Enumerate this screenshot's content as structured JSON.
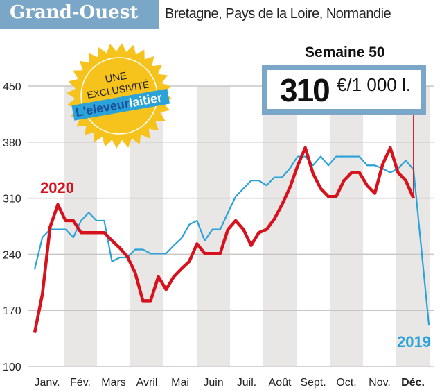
{
  "header": {
    "title": "Grand-Ouest",
    "subtitle": "Bretagne, Pays de la Loire, Normandie"
  },
  "callout": {
    "label": "Semaine 50",
    "value": "310",
    "unit": "€/1 000 l."
  },
  "badge": {
    "line1": "UNE",
    "line2": "EXCLUSIVITÉ",
    "logo_part1": "L'eleveur",
    "logo_part2": "laitier"
  },
  "colors": {
    "accent_box": "#7aa6c8",
    "series_2020": "#d6121d",
    "series_2019": "#2ba3d8",
    "band": "#e9e6e6",
    "badge": "#f6c21c"
  },
  "chart_data": {
    "type": "line",
    "xlabel": "",
    "ylabel": "",
    "ylim": [
      100,
      450
    ],
    "yticks": [
      100,
      170,
      240,
      310,
      380,
      450
    ],
    "x_unit": "week",
    "xlim": [
      1,
      52
    ],
    "month_labels": [
      "Janv.",
      "Fév.",
      "Mars",
      "Avril",
      "Mai",
      "Juin",
      "Juil.",
      "Août",
      "Sept.",
      "Oct.",
      "Nov.",
      "Déc."
    ],
    "grid": true,
    "series": [
      {
        "name": "2020",
        "weeks": [
          1,
          2,
          3,
          4,
          5,
          6,
          7,
          8,
          9,
          10,
          11,
          12,
          13,
          14,
          15,
          16,
          17,
          18,
          19,
          20,
          21,
          22,
          23,
          24,
          25,
          26,
          27,
          28,
          29,
          30,
          31,
          32,
          33,
          34,
          35,
          36,
          37,
          38,
          39,
          40,
          41,
          42,
          43,
          44,
          45,
          46,
          47,
          48,
          49,
          50
        ],
        "values": [
          142,
          190,
          274,
          302,
          282,
          282,
          267,
          267,
          267,
          267,
          257,
          248,
          237,
          217,
          182,
          182,
          212,
          196,
          212,
          222,
          231,
          253,
          241,
          241,
          241,
          271,
          282,
          271,
          251,
          267,
          271,
          284,
          302,
          323,
          350,
          373,
          341,
          322,
          312,
          312,
          332,
          342,
          342,
          326,
          316,
          352,
          373,
          342,
          332,
          310
        ]
      },
      {
        "name": "2019",
        "weeks": [
          1,
          2,
          3,
          4,
          5,
          6,
          7,
          8,
          9,
          10,
          11,
          12,
          13,
          14,
          15,
          16,
          17,
          18,
          19,
          20,
          21,
          22,
          23,
          24,
          25,
          26,
          27,
          28,
          29,
          30,
          31,
          32,
          33,
          34,
          35,
          36,
          37,
          38,
          39,
          40,
          41,
          42,
          43,
          44,
          45,
          46,
          47,
          48,
          49,
          50,
          52
        ],
        "values": [
          221,
          261,
          271,
          271,
          271,
          261,
          282,
          292,
          282,
          282,
          231,
          236,
          236,
          246,
          246,
          241,
          241,
          241,
          251,
          260,
          277,
          282,
          257,
          271,
          271,
          292,
          312,
          322,
          332,
          332,
          326,
          336,
          336,
          347,
          362,
          362,
          351,
          362,
          351,
          362,
          362,
          362,
          362,
          351,
          351,
          347,
          342,
          347,
          357,
          346,
          151
        ]
      }
    ]
  }
}
